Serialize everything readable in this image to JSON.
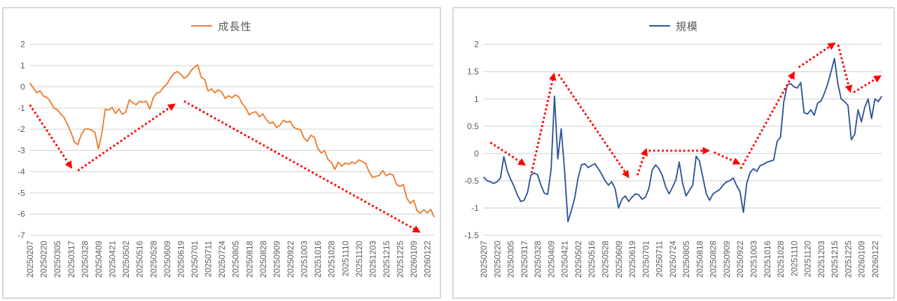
{
  "page": {
    "background": "#FFFFFF",
    "panel_border_color": "#D9D9D9"
  },
  "chart_data": [
    {
      "id": "growth",
      "type": "line",
      "legend": "成長性",
      "series_name": "成長性",
      "line_color": "#ED7D31",
      "arrow_color": "#FF0000",
      "grid_color": "#D9D9D9",
      "tick_text_color": "#595959",
      "legend_position": "top-center",
      "grid": true,
      "ylim": [
        2,
        -7
      ],
      "y_ticks": [
        "2",
        "1",
        "0",
        "-1",
        "-2",
        "-3",
        "-4",
        "-5",
        "-6",
        "-7"
      ],
      "x_tick_every": 4,
      "x_tick_labels": [
        "20250207",
        "20250220",
        "20250305",
        "20250317",
        "20250328",
        "20250409",
        "20250421",
        "20250502",
        "20250516",
        "20250528",
        "20250609",
        "20250619",
        "20250701",
        "20250711",
        "20250724",
        "20250805",
        "20250818",
        "20250828",
        "20250909",
        "20250922",
        "20251003",
        "20251016",
        "20251028",
        "20251110",
        "20251120",
        "20251203",
        "20251215",
        "20251225",
        "20260109",
        "20260122"
      ],
      "values": [
        0.18,
        -0.05,
        -0.28,
        -0.19,
        -0.44,
        -0.5,
        -0.7,
        -1.0,
        -1.08,
        -1.28,
        -1.45,
        -1.78,
        -2.15,
        -2.6,
        -2.73,
        -2.25,
        -2.0,
        -1.98,
        -2.05,
        -2.15,
        -2.94,
        -2.2,
        -1.06,
        -1.1,
        -0.97,
        -1.25,
        -1.05,
        -1.3,
        -1.18,
        -0.62,
        -0.75,
        -0.85,
        -0.68,
        -0.73,
        -0.68,
        -1.05,
        -0.52,
        -0.3,
        -0.25,
        -0.02,
        0.13,
        0.4,
        0.62,
        0.72,
        0.6,
        0.4,
        0.5,
        0.75,
        0.92,
        1.03,
        0.45,
        0.35,
        -0.2,
        -0.1,
        -0.28,
        -0.15,
        -0.25,
        -0.55,
        -0.42,
        -0.52,
        -0.38,
        -0.48,
        -0.8,
        -1.0,
        -1.32,
        -1.22,
        -1.18,
        -1.42,
        -1.28,
        -1.55,
        -1.72,
        -1.67,
        -1.92,
        -1.82,
        -1.58,
        -1.67,
        -1.63,
        -1.92,
        -1.98,
        -2.03,
        -2.42,
        -2.57,
        -2.28,
        -2.38,
        -2.9,
        -3.12,
        -3.02,
        -3.42,
        -3.57,
        -3.9,
        -3.55,
        -3.75,
        -3.6,
        -3.65,
        -3.55,
        -3.62,
        -3.45,
        -3.52,
        -3.62,
        -4.0,
        -4.28,
        -4.22,
        -4.18,
        -3.95,
        -4.2,
        -4.1,
        -4.15,
        -4.6,
        -4.7,
        -4.6,
        -5.25,
        -5.5,
        -5.35,
        -5.85,
        -5.95,
        -5.8,
        -5.95,
        -5.78,
        -6.15
      ],
      "arrows": [
        {
          "from": [
            0,
            -0.85
          ],
          "to": [
            12,
            -3.78
          ]
        },
        {
          "from": [
            14,
            -3.95
          ],
          "to": [
            42,
            -0.85
          ]
        },
        {
          "from": [
            45,
            -0.68
          ],
          "to": [
            113.5,
            -6.82
          ]
        }
      ]
    },
    {
      "id": "scale",
      "type": "line",
      "legend": "規模",
      "series_name": "規模",
      "line_color": "#2F5597",
      "arrow_color": "#FF0000",
      "grid_color": "#D9D9D9",
      "tick_text_color": "#595959",
      "legend_position": "top-center",
      "grid": true,
      "ylim": [
        2,
        -1.5
      ],
      "y_ticks": [
        "2",
        "1.5",
        "1",
        "0.5",
        "0",
        "-0.5",
        "-1",
        "-1.5"
      ],
      "x_tick_every": 4,
      "x_tick_labels": [
        "20250207",
        "20250220",
        "20250305",
        "20250317",
        "20250328",
        "20250409",
        "20250421",
        "20250502",
        "20250516",
        "20250528",
        "20250609",
        "20250619",
        "20250701",
        "20250711",
        "20250724",
        "20250805",
        "20250818",
        "20250828",
        "20250909",
        "20250922",
        "20251003",
        "20251016",
        "20251028",
        "20251110",
        "20251120",
        "20251203",
        "20251215",
        "20251225",
        "20260109",
        "20260122"
      ],
      "values": [
        -0.43,
        -0.5,
        -0.52,
        -0.55,
        -0.52,
        -0.45,
        -0.06,
        -0.32,
        -0.47,
        -0.6,
        -0.76,
        -0.88,
        -0.86,
        -0.72,
        -0.4,
        -0.36,
        -0.39,
        -0.58,
        -0.73,
        -0.75,
        -0.3,
        1.05,
        -0.1,
        0.45,
        -0.3,
        -1.25,
        -1.05,
        -0.82,
        -0.45,
        -0.21,
        -0.19,
        -0.26,
        -0.22,
        -0.19,
        -0.28,
        -0.38,
        -0.5,
        -0.58,
        -0.52,
        -0.65,
        -1.0,
        -0.84,
        -0.78,
        -0.88,
        -0.8,
        -0.74,
        -0.76,
        -0.84,
        -0.8,
        -0.64,
        -0.3,
        -0.21,
        -0.28,
        -0.41,
        -0.62,
        -0.74,
        -0.62,
        -0.48,
        -0.16,
        -0.55,
        -0.78,
        -0.68,
        -0.58,
        -0.05,
        -0.14,
        -0.44,
        -0.74,
        -0.86,
        -0.74,
        -0.7,
        -0.66,
        -0.58,
        -0.52,
        -0.5,
        -0.45,
        -0.59,
        -0.7,
        -1.08,
        -0.55,
        -0.35,
        -0.28,
        -0.33,
        -0.22,
        -0.2,
        -0.16,
        -0.14,
        -0.12,
        0.22,
        0.3,
        0.95,
        1.25,
        1.28,
        1.22,
        1.2,
        1.3,
        0.75,
        0.72,
        0.8,
        0.7,
        0.92,
        0.96,
        1.1,
        1.28,
        1.5,
        1.74,
        1.28,
        1.0,
        0.95,
        0.88,
        0.25,
        0.35,
        0.8,
        0.58,
        0.85,
        1.0,
        0.64,
        1.0,
        0.95,
        1.05
      ],
      "arrows": [
        {
          "from": [
            2,
            0.2
          ],
          "to": [
            12,
            -0.2
          ]
        },
        {
          "from": [
            14.2,
            -0.36
          ],
          "to": [
            20.8,
            1.44
          ]
        },
        {
          "from": [
            22.2,
            1.45
          ],
          "to": [
            42.8,
            -0.42
          ]
        },
        {
          "from": [
            45.6,
            -0.4
          ],
          "to": [
            48.1,
            0.06
          ]
        },
        {
          "from": [
            49,
            0.05
          ],
          "to": [
            66.5,
            0.05
          ]
        },
        {
          "from": [
            68.3,
            0.02
          ],
          "to": [
            75.6,
            -0.18
          ]
        },
        {
          "from": [
            76.2,
            -0.28
          ],
          "to": [
            91.9,
            1.47
          ]
        },
        {
          "from": [
            93.4,
            1.58
          ],
          "to": [
            103.8,
            2.01
          ]
        },
        {
          "from": [
            105.1,
            1.99
          ],
          "to": [
            108.6,
            1.15
          ]
        },
        {
          "from": [
            109.7,
            1.12
          ],
          "to": [
            117.4,
            1.41
          ]
        }
      ]
    }
  ]
}
